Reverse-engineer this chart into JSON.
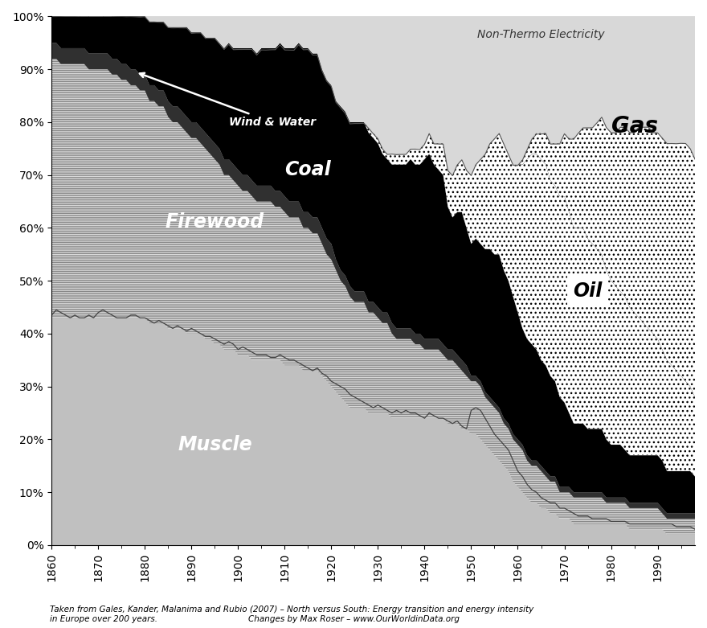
{
  "xlim": [
    1860,
    1998
  ],
  "ylim": [
    0,
    100
  ],
  "footnote1": "Taken from Gales, Kander, Malanima and Rubio (2007) – North versus South: Energy transition and energy intensity",
  "footnote2_left": "in Europe over 200 years.",
  "footnote2_right": "Changes by Max Roser – www.OurWorldinData.org",
  "non_thermo_label": "Non-Thermo Electricity",
  "gas_label": "Gas",
  "coal_label": "Coal",
  "oil_label": "Oil",
  "firewood_label": "Firewood",
  "muscle_label": "Muscle",
  "wind_water_label": "Wind & Water",
  "years": [
    1860,
    1861,
    1862,
    1863,
    1864,
    1865,
    1866,
    1867,
    1868,
    1869,
    1870,
    1871,
    1872,
    1873,
    1874,
    1875,
    1876,
    1877,
    1878,
    1879,
    1880,
    1881,
    1882,
    1883,
    1884,
    1885,
    1886,
    1887,
    1888,
    1889,
    1890,
    1891,
    1892,
    1893,
    1894,
    1895,
    1896,
    1897,
    1898,
    1899,
    1900,
    1901,
    1902,
    1903,
    1904,
    1905,
    1906,
    1907,
    1908,
    1909,
    1910,
    1911,
    1912,
    1913,
    1914,
    1915,
    1916,
    1917,
    1918,
    1919,
    1920,
    1921,
    1922,
    1923,
    1924,
    1925,
    1926,
    1927,
    1928,
    1929,
    1930,
    1931,
    1932,
    1933,
    1934,
    1935,
    1936,
    1937,
    1938,
    1939,
    1940,
    1941,
    1942,
    1943,
    1944,
    1945,
    1946,
    1947,
    1948,
    1949,
    1950,
    1951,
    1952,
    1953,
    1954,
    1955,
    1956,
    1957,
    1958,
    1959,
    1960,
    1961,
    1962,
    1963,
    1964,
    1965,
    1966,
    1967,
    1968,
    1969,
    1970,
    1971,
    1972,
    1973,
    1974,
    1975,
    1976,
    1977,
    1978,
    1979,
    1980,
    1981,
    1982,
    1983,
    1984,
    1985,
    1986,
    1987,
    1988,
    1989,
    1990,
    1991,
    1992,
    1993,
    1994,
    1995,
    1996,
    1997,
    1998
  ],
  "muscle": [
    43,
    43,
    43,
    43,
    43,
    43,
    43,
    43,
    43,
    43,
    43,
    43,
    43,
    43,
    43,
    43,
    43,
    43,
    43,
    43,
    43,
    42,
    42,
    42,
    42,
    41,
    41,
    41,
    41,
    40,
    40,
    40,
    40,
    39,
    39,
    38,
    38,
    37,
    37,
    37,
    36,
    36,
    36,
    35,
    35,
    35,
    35,
    35,
    35,
    35,
    34,
    34,
    34,
    34,
    33,
    33,
    33,
    33,
    32,
    31,
    30,
    29,
    28,
    27,
    26,
    26,
    26,
    26,
    25,
    25,
    25,
    25,
    25,
    24,
    24,
    24,
    24,
    24,
    24,
    24,
    24,
    24,
    24,
    24,
    24,
    23,
    23,
    23,
    22,
    22,
    21,
    21,
    20,
    19,
    18,
    17,
    16,
    15,
    14,
    12,
    11,
    10,
    9,
    8,
    8,
    7,
    7,
    6,
    6,
    5,
    5,
    5,
    4,
    4,
    4,
    4,
    4,
    4,
    4,
    4,
    4,
    4,
    4,
    4,
    3,
    3,
    3,
    3,
    3,
    3,
    3,
    3,
    2,
    2,
    2,
    2,
    2,
    2,
    2
  ],
  "firewood": [
    49,
    49,
    48,
    48,
    48,
    48,
    48,
    48,
    47,
    47,
    47,
    47,
    47,
    46,
    46,
    45,
    45,
    44,
    44,
    43,
    43,
    42,
    42,
    41,
    41,
    40,
    39,
    39,
    38,
    38,
    37,
    37,
    36,
    36,
    35,
    35,
    34,
    33,
    33,
    32,
    32,
    31,
    31,
    31,
    30,
    30,
    30,
    30,
    29,
    29,
    29,
    28,
    28,
    28,
    27,
    27,
    26,
    26,
    25,
    24,
    24,
    23,
    22,
    22,
    21,
    20,
    20,
    20,
    19,
    19,
    18,
    17,
    17,
    16,
    15,
    15,
    15,
    15,
    14,
    14,
    13,
    13,
    13,
    13,
    12,
    12,
    12,
    11,
    11,
    10,
    10,
    10,
    10,
    9,
    9,
    9,
    9,
    8,
    8,
    8,
    8,
    8,
    7,
    7,
    7,
    7,
    6,
    6,
    6,
    5,
    5,
    5,
    5,
    5,
    5,
    5,
    5,
    5,
    5,
    4,
    4,
    4,
    4,
    4,
    4,
    4,
    4,
    4,
    4,
    4,
    4,
    3,
    3,
    3,
    3,
    3,
    3,
    3,
    3
  ],
  "wind_water": [
    3,
    3,
    3,
    3,
    3,
    3,
    3,
    3,
    3,
    3,
    3,
    3,
    3,
    3,
    3,
    3,
    3,
    3,
    3,
    3,
    3,
    3,
    3,
    3,
    3,
    3,
    3,
    3,
    3,
    3,
    3,
    3,
    3,
    3,
    3,
    3,
    3,
    3,
    3,
    3,
    3,
    3,
    3,
    3,
    3,
    3,
    3,
    3,
    3,
    3,
    3,
    3,
    3,
    3,
    3,
    3,
    3,
    3,
    3,
    3,
    3,
    2,
    2,
    2,
    2,
    2,
    2,
    2,
    2,
    2,
    2,
    2,
    2,
    2,
    2,
    2,
    2,
    2,
    2,
    2,
    2,
    2,
    2,
    2,
    2,
    2,
    2,
    2,
    2,
    2,
    1,
    1,
    1,
    1,
    1,
    1,
    1,
    1,
    1,
    1,
    1,
    1,
    1,
    1,
    1,
    1,
    1,
    1,
    1,
    1,
    1,
    1,
    1,
    1,
    1,
    1,
    1,
    1,
    1,
    1,
    1,
    1,
    1,
    1,
    1,
    1,
    1,
    1,
    1,
    1,
    1,
    1,
    1,
    1,
    1,
    1,
    1,
    1,
    1
  ],
  "coal": [
    5,
    5,
    6,
    6,
    6,
    6,
    6,
    7,
    7,
    7,
    7,
    7,
    8,
    8,
    8,
    9,
    9,
    10,
    10,
    11,
    11,
    12,
    12,
    13,
    13,
    14,
    15,
    15,
    16,
    17,
    17,
    17,
    18,
    18,
    19,
    20,
    20,
    21,
    22,
    22,
    23,
    24,
    24,
    25,
    25,
    26,
    26,
    26,
    27,
    28,
    28,
    29,
    29,
    30,
    31,
    31,
    31,
    31,
    30,
    30,
    30,
    30,
    31,
    31,
    31,
    32,
    32,
    32,
    32,
    31,
    31,
    30,
    29,
    30,
    31,
    31,
    31,
    32,
    32,
    32,
    34,
    35,
    33,
    32,
    32,
    27,
    25,
    27,
    28,
    26,
    25,
    26,
    26,
    27,
    28,
    28,
    29,
    28,
    27,
    26,
    24,
    22,
    22,
    22,
    21,
    20,
    20,
    19,
    18,
    17,
    16,
    14,
    13,
    13,
    13,
    12,
    12,
    12,
    12,
    11,
    10,
    10,
    10,
    9,
    9,
    9,
    9,
    9,
    9,
    9,
    9,
    9,
    8,
    8,
    8,
    8,
    8,
    8,
    7
  ],
  "oil": [
    0,
    0,
    0,
    0,
    0,
    0,
    0,
    0,
    0,
    0,
    0,
    0,
    0,
    0,
    0,
    0,
    0,
    0,
    0,
    0,
    0,
    0,
    0,
    0,
    0,
    0,
    0,
    0,
    0,
    0,
    0,
    0,
    0,
    0,
    0,
    0,
    0,
    0,
    0,
    0,
    0,
    0,
    0,
    0,
    0,
    0,
    0,
    0,
    0,
    0,
    0,
    0,
    0,
    0,
    0,
    0,
    0,
    0,
    0,
    0,
    0,
    0,
    0,
    0,
    0,
    0,
    0,
    0,
    1,
    1,
    1,
    1,
    1,
    2,
    2,
    2,
    2,
    2,
    3,
    3,
    3,
    4,
    4,
    5,
    6,
    7,
    8,
    9,
    10,
    11,
    13,
    14,
    16,
    18,
    20,
    22,
    23,
    24,
    24,
    25,
    28,
    31,
    34,
    36,
    37,
    38,
    38,
    37,
    37,
    38,
    39,
    38,
    37,
    37,
    37,
    36,
    35,
    34,
    33,
    32,
    31,
    30,
    29,
    29,
    28,
    27,
    26,
    25,
    24,
    23,
    22,
    21,
    21,
    20,
    19,
    18,
    17,
    16,
    15
  ],
  "gas": [
    0,
    0,
    0,
    0,
    0,
    0,
    0,
    0,
    0,
    0,
    0,
    0,
    0,
    0,
    0,
    0,
    0,
    0,
    0,
    0,
    0,
    0,
    0,
    0,
    0,
    0,
    0,
    0,
    0,
    0,
    0,
    0,
    0,
    0,
    0,
    0,
    0,
    0,
    0,
    0,
    0,
    0,
    0,
    0,
    0,
    0,
    0,
    0,
    0,
    0,
    0,
    0,
    0,
    0,
    0,
    0,
    0,
    0,
    0,
    0,
    0,
    0,
    0,
    0,
    0,
    0,
    0,
    0,
    0,
    0,
    0,
    0,
    0,
    0,
    0,
    0,
    0,
    0,
    0,
    0,
    0,
    0,
    0,
    0,
    0,
    0,
    0,
    0,
    0,
    0,
    0,
    0,
    0,
    0,
    0,
    0,
    0,
    0,
    0,
    0,
    0,
    1,
    2,
    3,
    4,
    5,
    6,
    7,
    8,
    10,
    12,
    14,
    17,
    18,
    19,
    21,
    22,
    24,
    26,
    27,
    28,
    29,
    31,
    32,
    33,
    34,
    36,
    37,
    38,
    38,
    39,
    40,
    41,
    42,
    43,
    44,
    45,
    45,
    45
  ],
  "muscle_line": [
    43.5,
    44.5,
    44.0,
    43.5,
    43.0,
    43.5,
    43.0,
    43.0,
    43.5,
    43.0,
    44.0,
    44.5,
    44.0,
    43.5,
    43.0,
    43.0,
    43.0,
    43.5,
    43.5,
    43.0,
    43.0,
    42.5,
    42.0,
    42.5,
    42.0,
    41.5,
    41.0,
    41.5,
    41.0,
    40.5,
    41.0,
    40.5,
    40.0,
    39.5,
    39.5,
    39.0,
    38.5,
    38.0,
    38.5,
    38.0,
    37.0,
    37.5,
    37.0,
    36.5,
    36.0,
    36.0,
    36.0,
    35.5,
    35.5,
    36.0,
    35.5,
    35.0,
    35.0,
    34.5,
    34.0,
    33.5,
    33.0,
    33.5,
    32.5,
    32.0,
    31.0,
    30.5,
    30.0,
    29.5,
    28.5,
    28.0,
    27.5,
    27.0,
    26.5,
    26.0,
    26.5,
    26.0,
    25.5,
    25.0,
    25.5,
    25.0,
    25.5,
    25.0,
    25.0,
    24.5,
    24.0,
    25.0,
    24.5,
    24.0,
    24.0,
    23.5,
    23.0,
    23.5,
    22.5,
    22.0,
    25.5,
    26.0,
    25.5,
    24.0,
    22.5,
    21.0,
    20.0,
    19.0,
    18.0,
    16.0,
    14.0,
    13.0,
    11.5,
    10.5,
    10.0,
    9.0,
    8.5,
    8.0,
    8.0,
    7.0,
    7.0,
    6.5,
    6.0,
    5.5,
    5.5,
    5.5,
    5.0,
    5.0,
    5.0,
    5.0,
    4.5,
    4.5,
    4.5,
    4.5,
    4.0,
    4.0,
    4.0,
    4.0,
    4.0,
    4.0,
    4.0,
    4.0,
    4.0,
    4.0,
    3.5,
    3.5,
    3.5,
    3.5,
    3.0
  ]
}
